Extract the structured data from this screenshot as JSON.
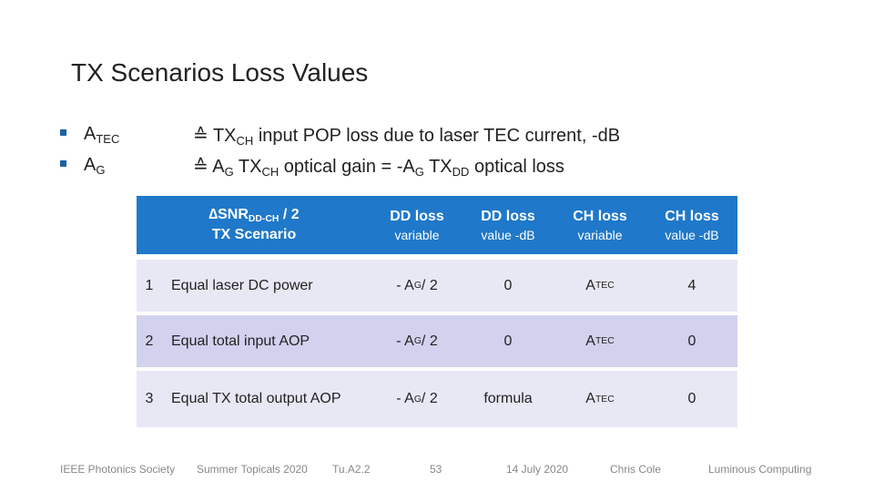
{
  "title": "TX Scenarios Loss Values",
  "definitions": [
    {
      "term": [
        "A",
        "TEC"
      ],
      "def": [
        "≙ TX",
        "CH",
        " input POP loss due to laser TEC current, -dB"
      ]
    },
    {
      "term": [
        "A",
        "G"
      ],
      "def": [
        "≙ A",
        "G",
        " TX",
        "CH",
        " optical gain = -A",
        "G",
        " TX",
        "DD",
        " optical loss"
      ]
    }
  ],
  "table": {
    "header": [
      {
        "main": [
          "∆SNR",
          "DD-CH",
          " / 2"
        ],
        "second": "TX Scenario"
      },
      {
        "main": [
          "DD loss"
        ],
        "second": "variable"
      },
      {
        "main": [
          "DD loss"
        ],
        "second": "value -dB"
      },
      {
        "main": [
          "CH loss"
        ],
        "second": "variable"
      },
      {
        "main": [
          "CH loss"
        ],
        "second": "value -dB"
      }
    ],
    "rows": [
      {
        "number": "1",
        "scenario": "Equal laser DC power",
        "dd_loss": [
          "- A",
          "G",
          " / 2"
        ],
        "dd_value": "0",
        "ch_loss": [
          "A",
          "TEC"
        ],
        "ch_value": "4"
      },
      {
        "number": "2",
        "scenario": "Equal total input AOP",
        "dd_loss": [
          "- A",
          "G",
          " / 2"
        ],
        "dd_value": "0",
        "ch_loss": [
          "A",
          "TEC"
        ],
        "ch_value": "0"
      },
      {
        "number": "3",
        "scenario": "Equal TX total output AOP",
        "dd_loss": [
          "- A",
          "G",
          " / 2"
        ],
        "dd_value": "formula",
        "ch_loss": [
          "A",
          "TEC"
        ],
        "ch_value": "0"
      }
    ]
  },
  "footer": [
    "IEEE Photonics Society",
    "Summer Topicals 2020",
    "Tu.A2.2",
    "53",
    "14 July 2020",
    "Chris Cole",
    "Luminous Computing"
  ]
}
